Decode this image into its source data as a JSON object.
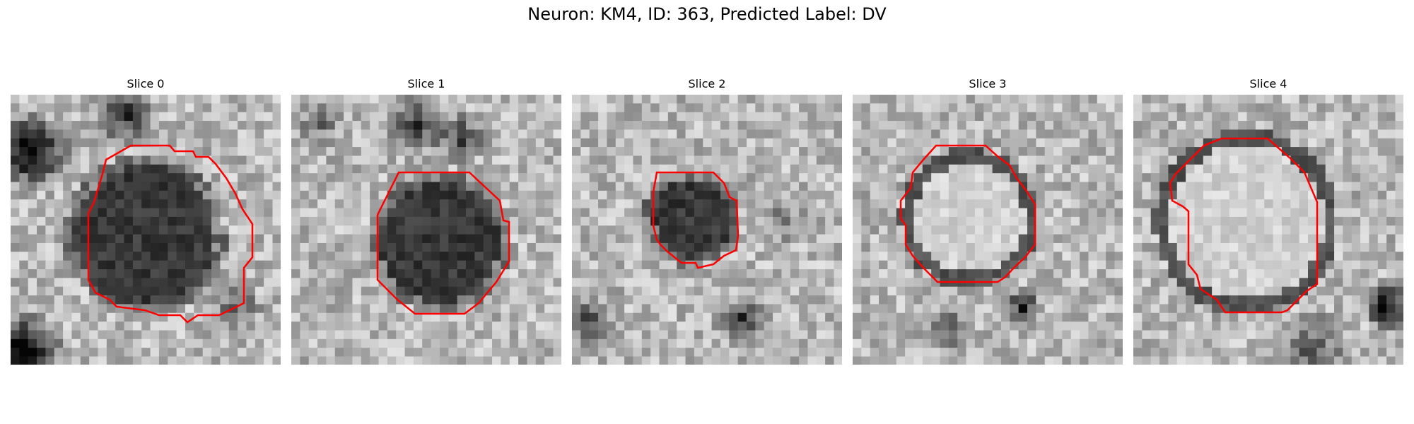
{
  "figure": {
    "title": "Neuron: KM4, ID: 363, Predicted Label: DV",
    "neuron": "KM4",
    "id": 363,
    "predicted_label": "DV",
    "image_type": "grayscale microscopy crops with red ROI outline",
    "outline_color": "#ff0000"
  },
  "slices": [
    {
      "label": "Slice 0",
      "icon": "dark-cell-large-roi"
    },
    {
      "label": "Slice 1",
      "icon": "dark-cell-octagon-roi"
    },
    {
      "label": "Slice 2",
      "icon": "small-dark-cell-roi"
    },
    {
      "label": "Slice 3",
      "icon": "ring-cell-octagon-roi"
    },
    {
      "label": "Slice 4",
      "icon": "large-ring-cell-roi"
    }
  ]
}
